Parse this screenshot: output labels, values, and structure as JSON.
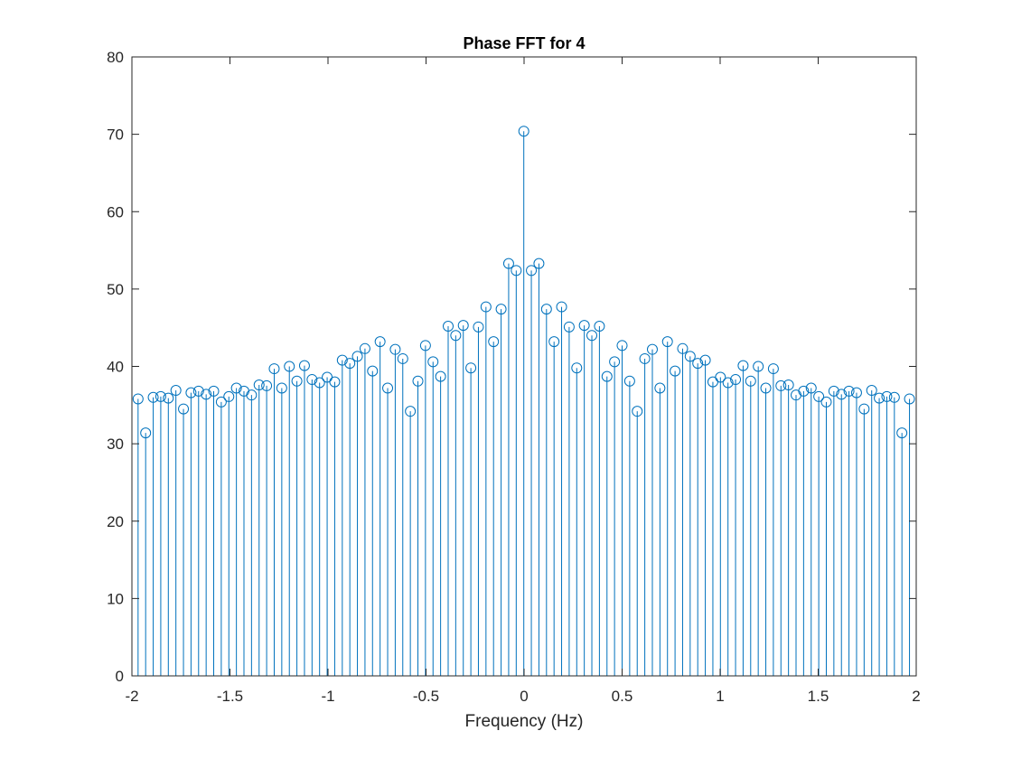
{
  "chart_data": {
    "type": "stem",
    "title": "Phase FFT for 4",
    "xlabel": "Frequency (Hz)",
    "ylabel": "",
    "xlim": [
      -2,
      2
    ],
    "ylim": [
      0,
      80
    ],
    "xticks": [
      -2,
      -1.5,
      -1,
      -0.5,
      0,
      0.5,
      1,
      1.5,
      2
    ],
    "xtick_labels": [
      "-2",
      "-1.5",
      "-1",
      "-0.5",
      "0",
      "0.5",
      "1",
      "1.5",
      "2"
    ],
    "yticks": [
      0,
      10,
      20,
      30,
      40,
      50,
      60,
      70,
      80
    ],
    "ytick_labels": [
      "0",
      "10",
      "20",
      "30",
      "40",
      "50",
      "60",
      "70",
      "80"
    ],
    "grid": false,
    "box": true,
    "marker": "circle",
    "color": "#0072BD",
    "series": [
      {
        "x": [
          -1.9686,
          -1.93,
          -1.8914,
          -1.8529,
          -1.8143,
          -1.7757,
          -1.7371,
          -1.6986,
          -1.66,
          -1.6214,
          -1.5829,
          -1.5443,
          -1.5057,
          -1.4671,
          -1.4286,
          -1.39,
          -1.3514,
          -1.3129,
          -1.2743,
          -1.2357,
          -1.1971,
          -1.1586,
          -1.12,
          -1.0814,
          -1.0429,
          -1.0043,
          -0.9657,
          -0.9271,
          -0.8886,
          -0.85,
          -0.8114,
          -0.7729,
          -0.7343,
          -0.6957,
          -0.6571,
          -0.6186,
          -0.58,
          -0.5414,
          -0.5029,
          -0.4643,
          -0.4257,
          -0.3871,
          -0.3486,
          -0.31,
          -0.2714,
          -0.2329,
          -0.1943,
          -0.1557,
          -0.1171,
          -0.0786,
          -0.04,
          -0.0014,
          0.0371,
          0.0757,
          0.1143,
          0.1529,
          0.1914,
          0.23,
          0.2686,
          0.3071,
          0.3457,
          0.3843,
          0.4229,
          0.4614,
          0.5,
          0.5386,
          0.5771,
          0.6157,
          0.6543,
          0.6929,
          0.7314,
          0.77,
          0.8086,
          0.8471,
          0.8857,
          0.9243,
          0.9629,
          1.0014,
          1.04,
          1.0786,
          1.1171,
          1.1557,
          1.1943,
          1.2329,
          1.2714,
          1.31,
          1.3486,
          1.3871,
          1.4257,
          1.4643,
          1.5029,
          1.5414,
          1.58,
          1.6186,
          1.6571,
          1.6957,
          1.7343,
          1.7729,
          1.8114,
          1.85,
          1.8886,
          1.9271,
          1.9657
        ],
        "values": [
          35.8,
          31.4,
          36.0,
          36.1,
          35.9,
          36.9,
          34.5,
          36.6,
          36.8,
          36.4,
          36.8,
          35.4,
          36.1,
          37.2,
          36.8,
          36.3,
          37.6,
          37.5,
          39.7,
          37.2,
          40.0,
          38.1,
          40.1,
          38.3,
          37.9,
          38.6,
          38.0,
          40.8,
          40.4,
          41.3,
          42.3,
          39.4,
          43.2,
          37.2,
          42.2,
          41.0,
          34.2,
          38.1,
          42.7,
          40.6,
          38.7,
          45.2,
          44.0,
          45.3,
          39.8,
          45.1,
          47.7,
          43.2,
          47.4,
          53.3,
          52.4,
          70.4,
          52.4,
          53.3,
          47.4,
          43.2,
          47.7,
          45.1,
          39.8,
          45.3,
          44.0,
          45.2,
          38.7,
          40.6,
          42.7,
          38.1,
          34.2,
          41.0,
          42.2,
          37.2,
          43.2,
          39.4,
          42.3,
          41.3,
          40.4,
          40.8,
          38.0,
          38.6,
          37.9,
          38.3,
          40.1,
          38.1,
          40.0,
          37.2,
          39.7,
          37.5,
          37.6,
          36.3,
          36.8,
          37.2,
          36.1,
          35.4,
          36.8,
          36.4,
          36.8,
          36.6,
          34.5,
          36.9,
          35.9,
          36.1,
          36.0,
          31.4,
          35.8
        ]
      }
    ]
  }
}
